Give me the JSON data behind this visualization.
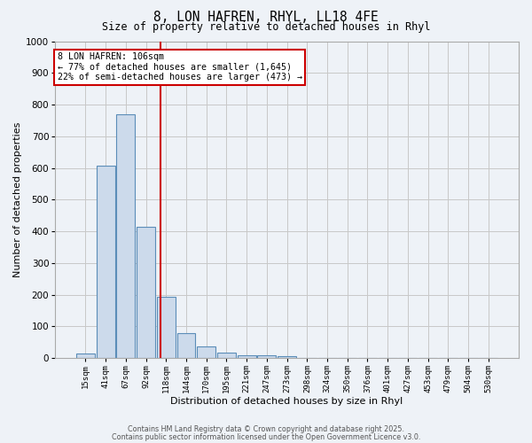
{
  "title_line1": "8, LON HAFREN, RHYL, LL18 4FE",
  "title_line2": "Size of property relative to detached houses in Rhyl",
  "xlabel": "Distribution of detached houses by size in Rhyl",
  "ylabel": "Number of detached properties",
  "bar_values": [
    15,
    607,
    770,
    413,
    193,
    78,
    38,
    18,
    10,
    10,
    7,
    0,
    0,
    0,
    0,
    0,
    0,
    0,
    0,
    0,
    0
  ],
  "categories": [
    "15sqm",
    "41sqm",
    "67sqm",
    "92sqm",
    "118sqm",
    "144sqm",
    "170sqm",
    "195sqm",
    "221sqm",
    "247sqm",
    "273sqm",
    "298sqm",
    "324sqm",
    "350sqm",
    "376sqm",
    "401sqm",
    "427sqm",
    "453sqm",
    "479sqm",
    "504sqm",
    "530sqm"
  ],
  "bar_color": "#ccdaeb",
  "bar_edge_color": "#5b8db8",
  "bar_edge_width": 0.8,
  "vline_color": "#cc0000",
  "vline_index": 3.73,
  "annotation_text": "8 LON HAFREN: 106sqm\n← 77% of detached houses are smaller (1,645)\n22% of semi-detached houses are larger (473) →",
  "annotation_box_color": "#ffffff",
  "annotation_border_color": "#cc0000",
  "ylim": [
    0,
    1000
  ],
  "yticks": [
    0,
    100,
    200,
    300,
    400,
    500,
    600,
    700,
    800,
    900,
    1000
  ],
  "grid_color": "#c8c8c8",
  "background_color": "#eef2f7",
  "footnote1": "Contains HM Land Registry data © Crown copyright and database right 2025.",
  "footnote2": "Contains public sector information licensed under the Open Government Licence v3.0."
}
